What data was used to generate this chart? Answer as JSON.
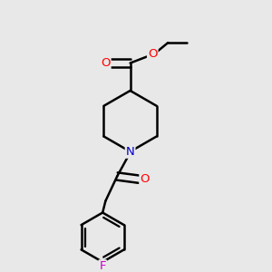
{
  "background_color": "#e8e8e8",
  "bond_color": "#000000",
  "atom_colors": {
    "O": "#ff0000",
    "N": "#0000cc",
    "F": "#cc00cc"
  },
  "line_width": 1.8,
  "font_size": 9.5,
  "figsize": [
    3.0,
    3.0
  ],
  "dpi": 100,
  "xlim": [
    0.1,
    0.9
  ],
  "ylim": [
    0.05,
    0.95
  ]
}
